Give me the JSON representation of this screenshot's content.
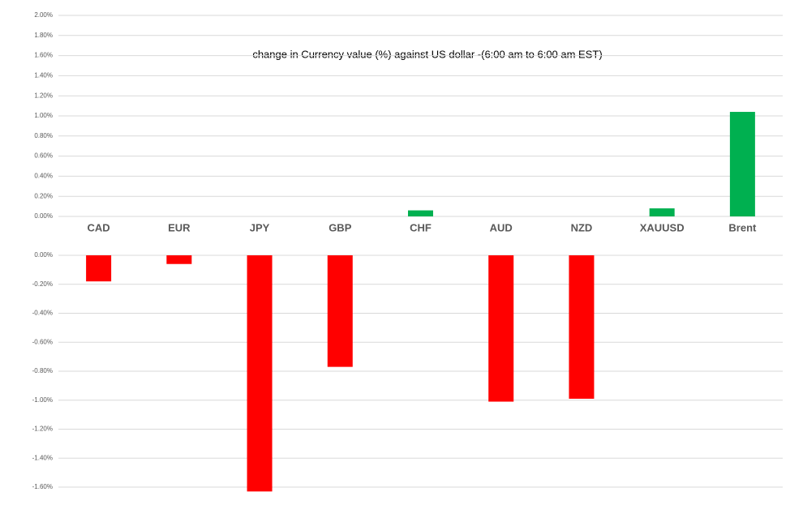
{
  "chart_data": [
    {
      "type": "bar",
      "title": "change in Currency value (%)  against US dollar -(6:00 am to 6:00 am EST)",
      "categories": [
        "CAD",
        "EUR",
        "JPY",
        "GBP",
        "CHF",
        "AUD",
        "NZD",
        "XAUUSD",
        "Brent"
      ],
      "values": [
        null,
        null,
        null,
        null,
        0.06,
        null,
        null,
        0.08,
        1.04
      ],
      "color": "#00b050",
      "ylim": [
        0,
        2
      ],
      "yticks": [
        {
          "value": 0,
          "label": "0.00%"
        },
        {
          "value": 0.2,
          "label": "0.20%"
        },
        {
          "value": 0.4,
          "label": "0.40%"
        },
        {
          "value": 0.6,
          "label": "0.60%"
        },
        {
          "value": 0.8,
          "label": "0.80%"
        },
        {
          "value": 1,
          "label": "1.00%"
        },
        {
          "value": 1.2,
          "label": "1.20%"
        },
        {
          "value": 1.4,
          "label": "1.40%"
        },
        {
          "value": 1.6,
          "label": "1.60%"
        },
        {
          "value": 1.8,
          "label": "1.80%"
        },
        {
          "value": 2,
          "label": "2.00%"
        }
      ],
      "grid": true
    },
    {
      "type": "bar",
      "values": [
        -0.18,
        -0.06,
        -1.63,
        -0.77,
        null,
        -1.01,
        -0.99,
        null,
        null
      ],
      "color": "#ff0000",
      "ylim": [
        -1.6,
        0
      ],
      "yticks": [
        {
          "value": 0,
          "label": "0.00%"
        },
        {
          "value": -0.2,
          "label": "-0.20%"
        },
        {
          "value": -0.4,
          "label": "-0.40%"
        },
        {
          "value": -0.6,
          "label": "-0.60%"
        },
        {
          "value": -0.8,
          "label": "-0.80%"
        },
        {
          "value": -1,
          "label": "-1.00%"
        },
        {
          "value": -1.2,
          "label": "-1.20%"
        },
        {
          "value": -1.4,
          "label": "-1.40%"
        },
        {
          "value": -1.6,
          "label": "-1.60%"
        }
      ],
      "grid": true
    }
  ]
}
